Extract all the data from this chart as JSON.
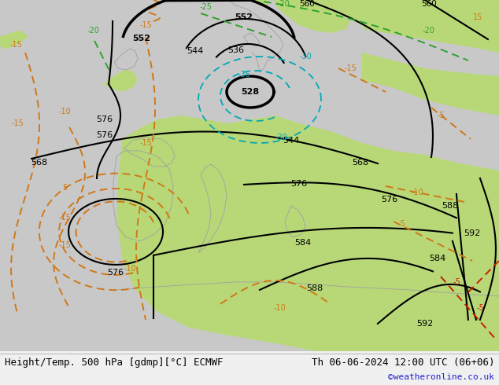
{
  "title_left": "Height/Temp. 500 hPa [gdmp][°C] ECMWF",
  "title_right": "Th 06-06-2024 12:00 UTC (06+06)",
  "watermark": "©weatheronline.co.uk",
  "bg_green": "#b8d878",
  "bg_gray": "#c8c8c8",
  "bg_white": "#e8e8e8",
  "contour_black": "#000000",
  "contour_orange": "#d07818",
  "contour_green": "#30a030",
  "contour_cyan": "#00a8b8",
  "contour_red": "#c82000",
  "watermark_color": "#2020cc",
  "figsize": [
    6.34,
    4.9
  ],
  "dpi": 100
}
